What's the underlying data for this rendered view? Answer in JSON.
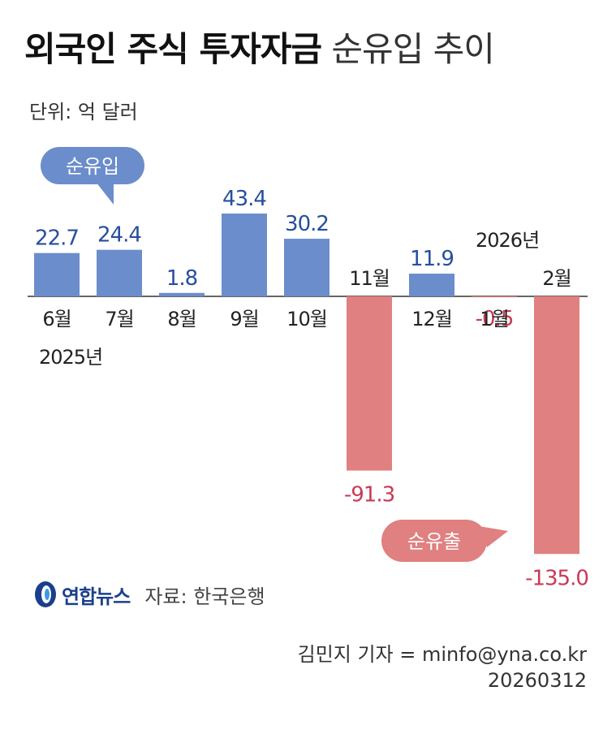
{
  "title_bold": "외국인 주식 투자자금",
  "title_light": "순유입 추이",
  "unit": "단위: 억 달러",
  "colors": {
    "inflow": "#6b8dcb",
    "outflow": "#e08080",
    "inflow_text": "#274f9e",
    "outflow_text": "#c83a56"
  },
  "chart_data": {
    "type": "bar",
    "categories": [
      "6월",
      "7월",
      "8월",
      "9월",
      "10월",
      "11월",
      "12월",
      "1월",
      "2월"
    ],
    "values": [
      22.7,
      24.4,
      1.8,
      43.4,
      30.2,
      -91.3,
      11.9,
      -0.5,
      -135.0
    ],
    "value_labels": [
      "22.7",
      "24.4",
      "1.8",
      "43.4",
      "30.2",
      "-91.3",
      "11.9",
      "-0.5",
      "-135.0"
    ],
    "year_labels": [
      {
        "text": "2025년",
        "at": "6월"
      },
      {
        "text": "2026년",
        "at": "1월"
      }
    ],
    "callouts": {
      "inflow": "순유입",
      "outflow": "순유출"
    }
  },
  "source": {
    "logo": "연합뉴스",
    "logo_icon": "yonhap-logo-icon",
    "text": "자료: 한국은행"
  },
  "credit": {
    "line1": "김민지 기자 = minfo@yna.co.kr",
    "line2": "20260312"
  }
}
